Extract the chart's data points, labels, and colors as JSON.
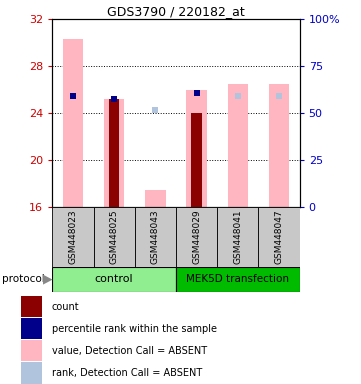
{
  "title": "GDS3790 / 220182_at",
  "samples": [
    "GSM448023",
    "GSM448025",
    "GSM448043",
    "GSM448029",
    "GSM448041",
    "GSM448047"
  ],
  "ylim_left": [
    16,
    32
  ],
  "ylim_right": [
    0,
    100
  ],
  "yticks_left": [
    16,
    20,
    24,
    28,
    32
  ],
  "yticks_right": [
    0,
    25,
    50,
    75,
    100
  ],
  "pink_bar_values": [
    30.3,
    25.2,
    17.5,
    26.0,
    26.5,
    26.5
  ],
  "light_blue_values": [
    25.5,
    null,
    24.3,
    null,
    25.5,
    25.5
  ],
  "dark_red_values": [
    null,
    25.2,
    null,
    24.0,
    null,
    null
  ],
  "blue_square_values": [
    25.5,
    25.2,
    null,
    25.7,
    null,
    null
  ],
  "colors": {
    "dark_red": "#8B0000",
    "blue_square": "#00008B",
    "pink_bar": "#FFB6C1",
    "light_blue": "#B0C4DE",
    "control_bg": "#90EE90",
    "mek5d_bg": "#00BB00",
    "gray_bg": "#C8C8C8",
    "axis_left_color": "#CC0000",
    "axis_right_color": "#0000CC",
    "white": "#FFFFFF"
  },
  "legend_labels": [
    "count",
    "percentile rank within the sample",
    "value, Detection Call = ABSENT",
    "rank, Detection Call = ABSENT"
  ],
  "legend_colors": [
    "#8B0000",
    "#00008B",
    "#FFB6C1",
    "#B0C4DE"
  ]
}
